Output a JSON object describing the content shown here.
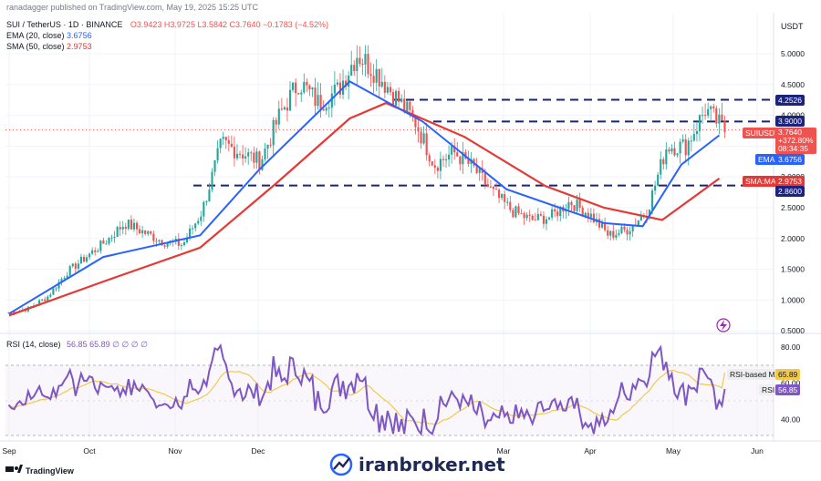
{
  "header": {
    "published": "ranadagger published on TradingView.com, May 19, 2025 15:25 UTC",
    "symbol": "SUI / TetherUS · 1D · BINANCE",
    "ohlc": "O3.9423 H3.9725 L3.5842 C3.7640 −0.1783 (−4.52%)",
    "ema_label": "EMA (20, close)",
    "ema_value": "3.6756",
    "sma_label": "SMA (50, close)",
    "sma_value": "2.9753"
  },
  "price_axis": {
    "currency": "USDT",
    "ticks": [
      "5.0000",
      "4.5000",
      "4.0000",
      "3.5000",
      "3.0000",
      "2.5000",
      "2.0000",
      "1.5000",
      "1.0000",
      "0.5000"
    ]
  },
  "level_badges": {
    "r1": "4.2526",
    "r2": "3.9000",
    "s1": "2.8600",
    "symbol_tag": "SUIUSDT",
    "symbol_price": "3.7640",
    "symbol_change": "+372.80%",
    "countdown": "08:34:35",
    "ema_tag": "EMA",
    "ema_price": "3.6756",
    "sma_tag": "SMA:MA",
    "sma_price": "2.9753"
  },
  "rsi": {
    "label": "RSI (14, close)",
    "values_text": "56.85 65.89 ∅ ∅ ∅ ∅",
    "ticks": [
      "80.00",
      "60.00",
      "40.00"
    ],
    "ma_tag": "RSI-based MA",
    "ma_value": "65.89",
    "rsi_tag": "RSI",
    "rsi_value": "56.85"
  },
  "time_axis": [
    "Sep",
    "Oct",
    "Nov",
    "Dec",
    "Mar",
    "Apr",
    "May",
    "Jun"
  ],
  "footer": {
    "brand": "TradingView",
    "watermark": "iranbroker.net"
  },
  "colors": {
    "up": "#26a69a",
    "down": "#ef5350",
    "ema": "#2962ff",
    "sma": "#e53935",
    "rsi": "#7e57c2",
    "rsi_ma": "#f2c94c",
    "levels": "#1a237e"
  },
  "chart_data": {
    "type": "candlestick",
    "title": "SUI / TetherUS · 1D · BINANCE",
    "ylim": [
      0.5,
      5.5
    ],
    "levels": [
      4.2526,
      3.9,
      2.86
    ],
    "series": [
      {
        "name": "SUI/USDT close (approx.)",
        "points": [
          [
            "Sep 1",
            0.8
          ],
          [
            "Sep 8",
            0.86
          ],
          [
            "Sep 15",
            1.05
          ],
          [
            "Sep 22",
            1.45
          ],
          [
            "Sep 29",
            1.7
          ],
          [
            "Oct 6",
            1.95
          ],
          [
            "Oct 13",
            2.25
          ],
          [
            "Oct 20",
            2.1
          ],
          [
            "Oct 27",
            1.95
          ],
          [
            "Nov 3",
            1.9
          ],
          [
            "Nov 10",
            2.45
          ],
          [
            "Nov 17",
            3.55
          ],
          [
            "Nov 24",
            3.4
          ],
          [
            "Dec 1",
            3.25
          ],
          [
            "Dec 8",
            4.0
          ],
          [
            "Dec 15",
            4.55
          ],
          [
            "Dec 22",
            4.2
          ],
          [
            "Dec 29",
            4.4
          ],
          [
            "Jan 5",
            5.0
          ],
          [
            "Jan 12",
            4.7
          ],
          [
            "Jan 19",
            4.3
          ],
          [
            "Jan 26",
            3.9
          ],
          [
            "Feb 2",
            3.2
          ],
          [
            "Feb 9",
            3.4
          ],
          [
            "Feb 16",
            3.15
          ],
          [
            "Feb 23",
            2.75
          ],
          [
            "Mar 2",
            2.45
          ],
          [
            "Mar 9",
            2.3
          ],
          [
            "Mar 16",
            2.35
          ],
          [
            "Mar 23",
            2.6
          ],
          [
            "Mar 30",
            2.4
          ],
          [
            "Apr 6",
            2.05
          ],
          [
            "Apr 13",
            2.15
          ],
          [
            "Apr 20",
            2.45
          ],
          [
            "Apr 27",
            3.5
          ],
          [
            "May 4",
            3.5
          ],
          [
            "May 11",
            4.1
          ],
          [
            "May 18",
            3.76
          ]
        ]
      },
      {
        "name": "EMA (20, close)",
        "points": [
          [
            "Sep 1",
            0.78
          ],
          [
            "Oct 6",
            1.7
          ],
          [
            "Nov 10",
            2.05
          ],
          [
            "Dec 1",
            3.1
          ],
          [
            "Jan 5",
            4.55
          ],
          [
            "Feb 2",
            3.9
          ],
          [
            "Mar 2",
            2.8
          ],
          [
            "Apr 6",
            2.25
          ],
          [
            "Apr 20",
            2.2
          ],
          [
            "May 4",
            3.2
          ],
          [
            "May 18",
            3.6756
          ]
        ]
      },
      {
        "name": "SMA (50, close)",
        "points": [
          [
            "Sep 1",
            0.75
          ],
          [
            "Oct 6",
            1.3
          ],
          [
            "Nov 10",
            1.85
          ],
          [
            "Dec 8",
            2.9
          ],
          [
            "Jan 5",
            3.95
          ],
          [
            "Jan 19",
            4.2
          ],
          [
            "Feb 16",
            3.65
          ],
          [
            "Mar 16",
            2.85
          ],
          [
            "Apr 6",
            2.5
          ],
          [
            "Apr 27",
            2.3
          ],
          [
            "May 18",
            2.9753
          ]
        ]
      }
    ],
    "rsi": {
      "name": "RSI (14, close)",
      "ylim": [
        30,
        85
      ],
      "last": 56.85,
      "ma_last": 65.89,
      "upper": 70,
      "lower": 30
    }
  }
}
